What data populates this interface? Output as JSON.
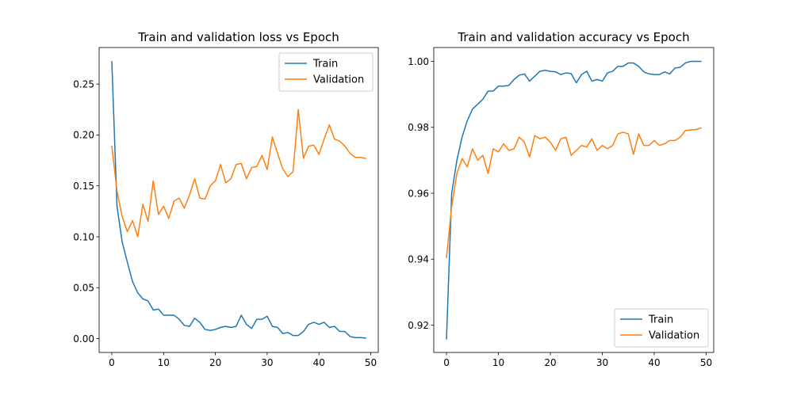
{
  "colors": {
    "train": "#1f77b4",
    "validation": "#ff7f0e"
  },
  "chart_data": [
    {
      "type": "line",
      "title": "Train and validation loss vs Epoch",
      "xlabel": "",
      "ylabel": "",
      "xlim": [
        -2.45,
        51.45
      ],
      "ylim": [
        -0.0136,
        0.2859
      ],
      "xticks": [
        0,
        10,
        20,
        30,
        40,
        50
      ],
      "yticks": [
        0.0,
        0.05,
        0.1,
        0.15,
        0.2,
        0.25
      ],
      "ytick_labels": [
        "0.00",
        "0.05",
        "0.10",
        "0.15",
        "0.20",
        "0.25"
      ],
      "legend_loc": "upper right",
      "grid": false,
      "x": [
        0,
        1,
        2,
        3,
        4,
        5,
        6,
        7,
        8,
        9,
        10,
        11,
        12,
        13,
        14,
        15,
        16,
        17,
        18,
        19,
        20,
        21,
        22,
        23,
        24,
        25,
        26,
        27,
        28,
        29,
        30,
        31,
        32,
        33,
        34,
        35,
        36,
        37,
        38,
        39,
        40,
        41,
        42,
        43,
        44,
        45,
        46,
        47,
        48,
        49
      ],
      "series": [
        {
          "name": "Train",
          "color": "#1f77b4",
          "values": [
            0.272,
            0.13,
            0.095,
            0.075,
            0.056,
            0.045,
            0.039,
            0.037,
            0.028,
            0.029,
            0.023,
            0.023,
            0.023,
            0.019,
            0.013,
            0.012,
            0.02,
            0.016,
            0.009,
            0.008,
            0.009,
            0.011,
            0.012,
            0.011,
            0.012,
            0.023,
            0.014,
            0.01,
            0.019,
            0.019,
            0.022,
            0.012,
            0.011,
            0.005,
            0.006,
            0.003,
            0.003,
            0.007,
            0.014,
            0.016,
            0.014,
            0.016,
            0.011,
            0.012,
            0.007,
            0.007,
            0.002,
            0.001,
            0.001,
            0.0005
          ]
        },
        {
          "name": "Validation",
          "color": "#ff7f0e",
          "values": [
            0.189,
            0.145,
            0.12,
            0.105,
            0.116,
            0.1,
            0.132,
            0.115,
            0.155,
            0.122,
            0.13,
            0.118,
            0.135,
            0.138,
            0.128,
            0.141,
            0.157,
            0.138,
            0.137,
            0.15,
            0.155,
            0.171,
            0.153,
            0.157,
            0.171,
            0.172,
            0.157,
            0.168,
            0.169,
            0.18,
            0.166,
            0.198,
            0.182,
            0.167,
            0.159,
            0.164,
            0.225,
            0.177,
            0.189,
            0.19,
            0.181,
            0.196,
            0.21,
            0.196,
            0.194,
            0.189,
            0.182,
            0.178,
            0.178,
            0.177
          ]
        }
      ]
    },
    {
      "type": "line",
      "title": "Train and validation accuracy vs Epoch",
      "xlabel": "",
      "ylabel": "",
      "xlim": [
        -2.45,
        51.45
      ],
      "ylim": [
        0.9117,
        1.0042
      ],
      "xticks": [
        0,
        10,
        20,
        30,
        40,
        50
      ],
      "yticks": [
        0.92,
        0.94,
        0.96,
        0.98,
        1.0
      ],
      "ytick_labels": [
        "0.92",
        "0.94",
        "0.96",
        "0.98",
        "1.00"
      ],
      "legend_loc": "lower right",
      "grid": false,
      "x": [
        0,
        1,
        2,
        3,
        4,
        5,
        6,
        7,
        8,
        9,
        10,
        11,
        12,
        13,
        14,
        15,
        16,
        17,
        18,
        19,
        20,
        21,
        22,
        23,
        24,
        25,
        26,
        27,
        28,
        29,
        30,
        31,
        32,
        33,
        34,
        35,
        36,
        37,
        38,
        39,
        40,
        41,
        42,
        43,
        44,
        45,
        46,
        47,
        48,
        49
      ],
      "series": [
        {
          "name": "Train",
          "color": "#1f77b4",
          "values": [
            0.9158,
            0.96,
            0.97,
            0.977,
            0.982,
            0.9855,
            0.987,
            0.9885,
            0.991,
            0.991,
            0.9925,
            0.9925,
            0.9927,
            0.9945,
            0.9958,
            0.9962,
            0.994,
            0.9955,
            0.997,
            0.9973,
            0.997,
            0.9968,
            0.996,
            0.9965,
            0.9963,
            0.9935,
            0.996,
            0.997,
            0.994,
            0.9945,
            0.994,
            0.9965,
            0.997,
            0.9985,
            0.9985,
            0.9995,
            0.9995,
            0.9985,
            0.9968,
            0.9962,
            0.996,
            0.996,
            0.9968,
            0.9962,
            0.998,
            0.9982,
            0.9995,
            1.0,
            1.0,
            1.0
          ]
        },
        {
          "name": "Validation",
          "color": "#ff7f0e",
          "values": [
            0.9405,
            0.956,
            0.966,
            0.9705,
            0.968,
            0.9735,
            0.97,
            0.9715,
            0.966,
            0.9735,
            0.9725,
            0.975,
            0.973,
            0.9735,
            0.977,
            0.9755,
            0.971,
            0.9775,
            0.9765,
            0.977,
            0.9755,
            0.973,
            0.9765,
            0.977,
            0.9715,
            0.973,
            0.9745,
            0.974,
            0.9765,
            0.973,
            0.9745,
            0.9735,
            0.9745,
            0.978,
            0.9785,
            0.978,
            0.9718,
            0.978,
            0.9745,
            0.9745,
            0.976,
            0.9745,
            0.975,
            0.976,
            0.976,
            0.977,
            0.979,
            0.9792,
            0.9793,
            0.9798
          ]
        }
      ]
    }
  ]
}
